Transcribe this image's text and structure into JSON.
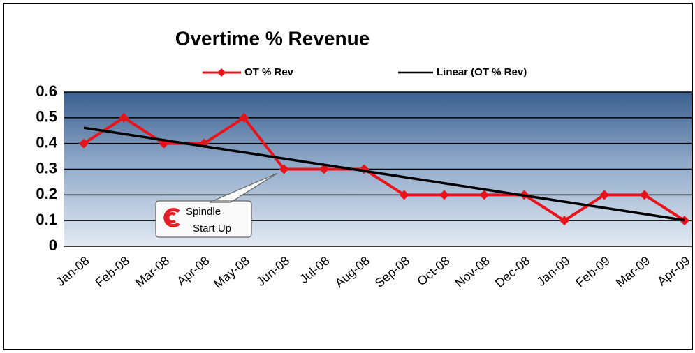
{
  "chart_data": {
    "type": "line",
    "title": "Overtime % Revenue",
    "categories": [
      "Jan-08",
      "Feb-08",
      "Mar-08",
      "Apr-08",
      "May-08",
      "Jun-08",
      "Jul-08",
      "Aug-08",
      "Sep-08",
      "Oct-08",
      "Nov-08",
      "Dec-08",
      "Jan-09",
      "Feb-09",
      "Mar-09",
      "Apr-09"
    ],
    "series": [
      {
        "name": "OT % Rev",
        "color": "#e8141b",
        "values": [
          0.4,
          0.5,
          0.4,
          0.4,
          0.5,
          0.3,
          0.3,
          0.3,
          0.2,
          0.2,
          0.2,
          0.2,
          0.1,
          0.2,
          0.2,
          0.1
        ]
      }
    ],
    "trendline": {
      "name": "Linear (OT % Rev)",
      "color": "#000000",
      "type": "linear"
    },
    "ylim": [
      0,
      0.6
    ],
    "yticks": [
      0,
      0.1,
      0.2,
      0.3,
      0.4,
      0.5,
      0.6
    ],
    "grid": true,
    "legend": "top",
    "annotation": {
      "lines": [
        "Spindle",
        "Start Up"
      ],
      "category": 5
    }
  }
}
